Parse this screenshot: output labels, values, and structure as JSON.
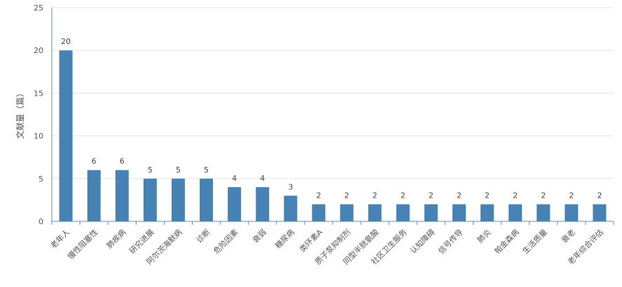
{
  "chart_data": {
    "type": "bar",
    "title": "",
    "xlabel": "",
    "ylabel": "文献量（篇）",
    "ylim": [
      0,
      25
    ],
    "yticks": [
      0,
      5,
      10,
      15,
      20,
      25
    ],
    "grid": true,
    "legend": "none",
    "bar_color": "#4682B4",
    "categories": [
      "老年人",
      "慢性阻塞性",
      "肺疾病",
      "研究进展",
      "阿尔茨海默病",
      "诊断",
      "危险因素",
      "衰弱",
      "糖尿病",
      "类环素A",
      "质子泵抑制剂",
      "同型半胱氨酸",
      "社区卫生服务",
      "认知障碍",
      "信号传导",
      "肺炎",
      "帕金森病",
      "生活质量",
      "衰老",
      "老年综合评估"
    ],
    "values": [
      20,
      6,
      6,
      5,
      5,
      5,
      4,
      4,
      3,
      2,
      2,
      2,
      2,
      2,
      2,
      2,
      2,
      2,
      2,
      2
    ]
  }
}
